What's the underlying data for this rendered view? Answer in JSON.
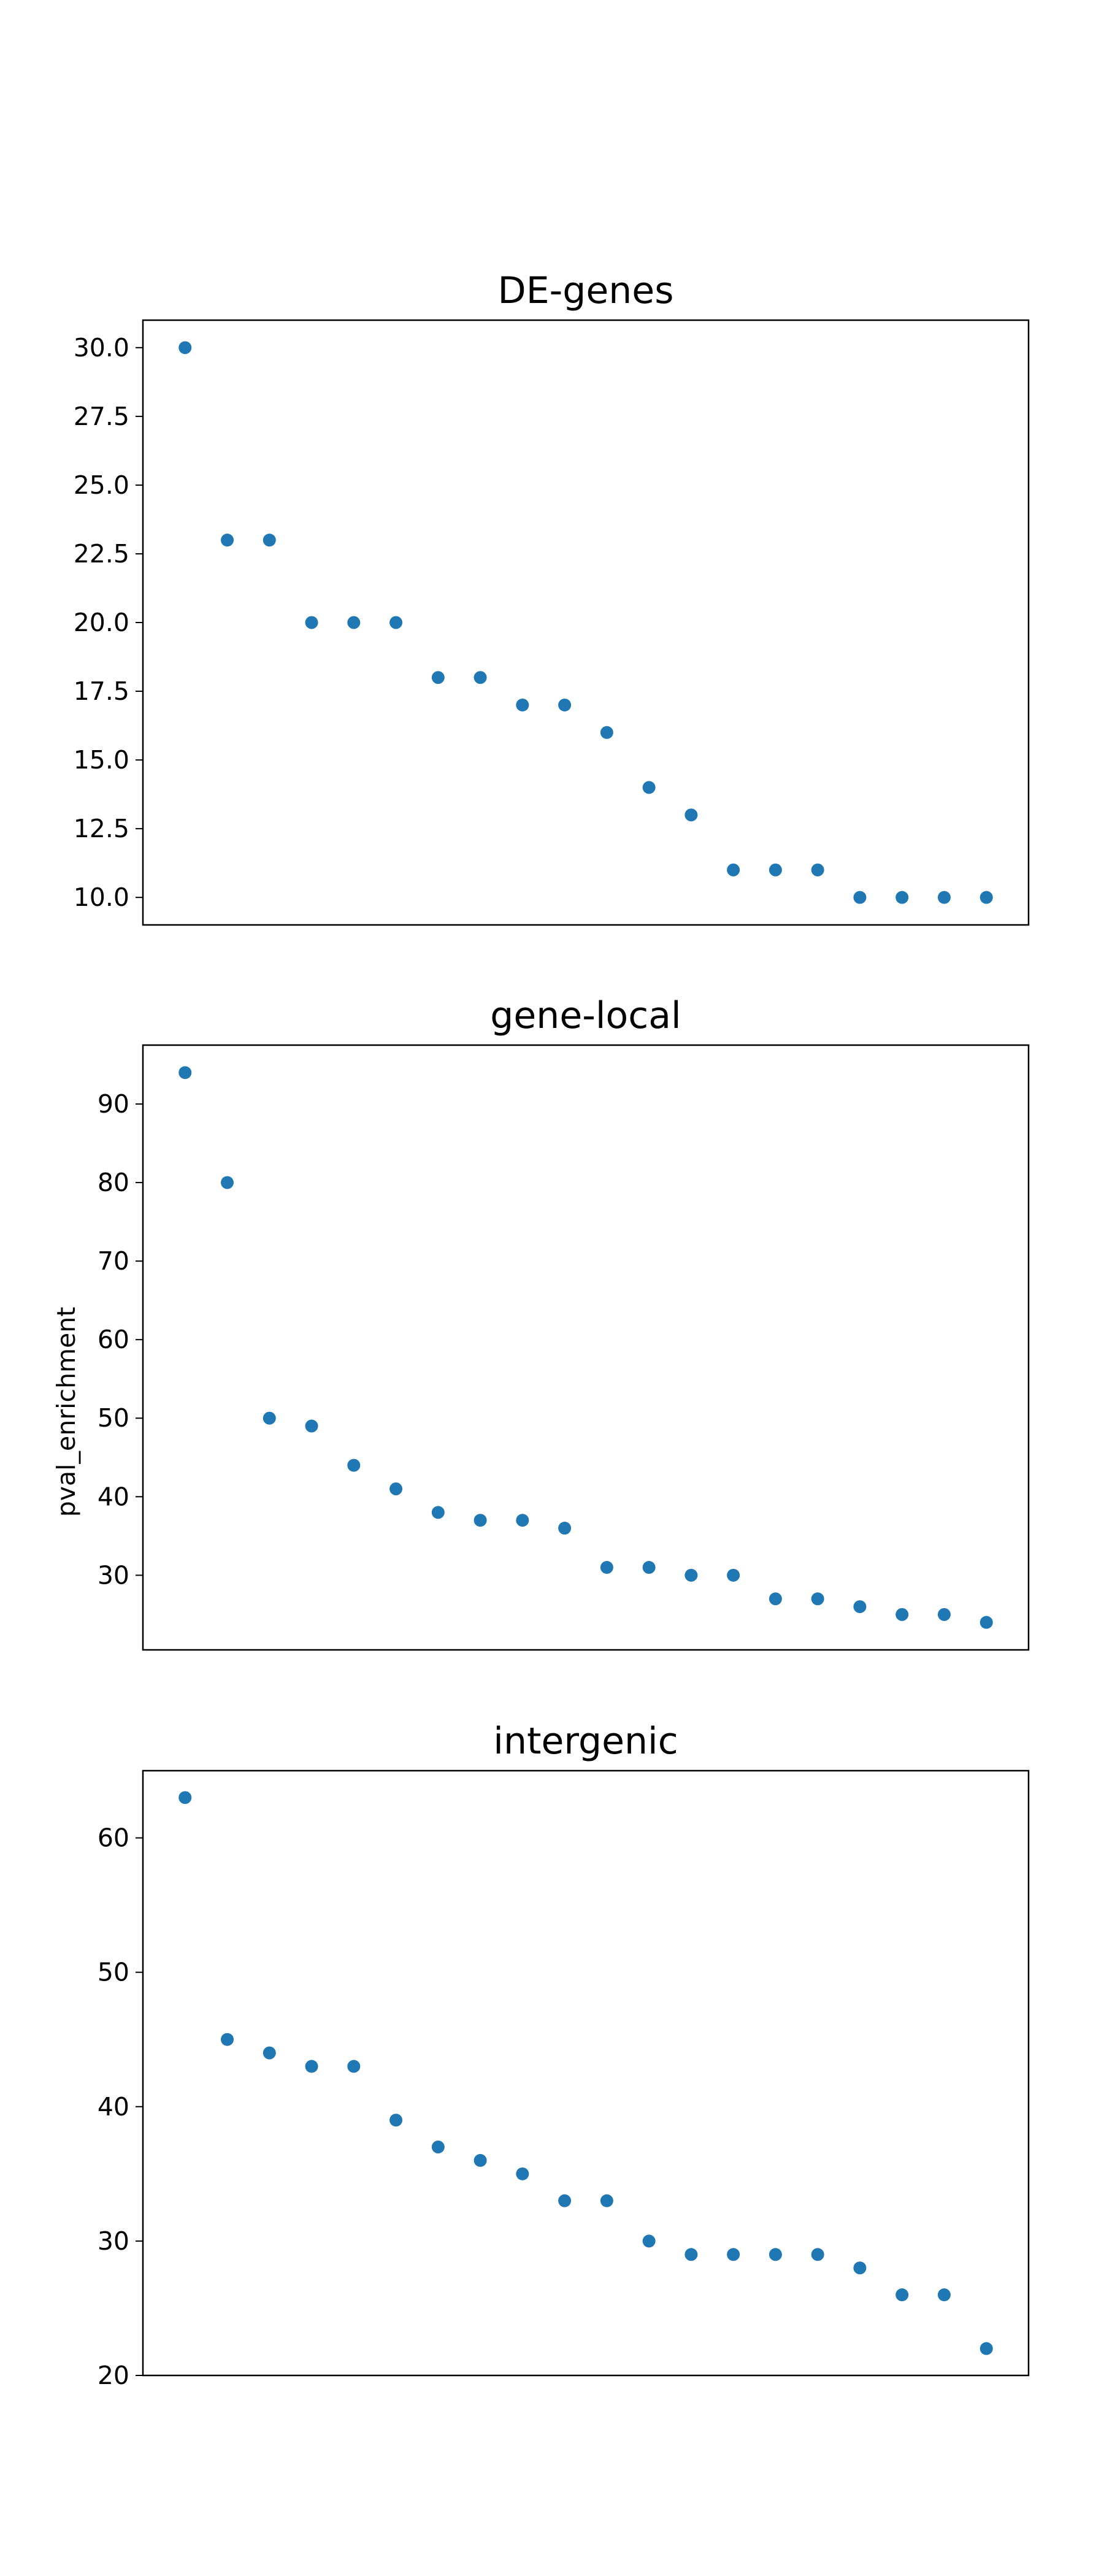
{
  "figure": {
    "ylabel": "pval_enrichment"
  },
  "style": {
    "marker_color": "#1f77b4",
    "axes_color": "#000000",
    "background": "#ffffff"
  },
  "chart_data": [
    {
      "type": "scatter",
      "title": "DE-genes",
      "xlabel": "",
      "ylabel": "",
      "x": [
        1,
        2,
        3,
        4,
        5,
        6,
        7,
        8,
        9,
        10,
        11,
        12,
        13,
        14,
        15,
        16,
        17,
        18,
        19,
        20
      ],
      "values": [
        30,
        23,
        23,
        20,
        20,
        20,
        18,
        18,
        17,
        17,
        16,
        14,
        13,
        11,
        11,
        11,
        10,
        10,
        10,
        10
      ],
      "xlim": [
        0,
        21
      ],
      "ylim": [
        9,
        31
      ],
      "yticks": [
        10.0,
        12.5,
        15.0,
        17.5,
        20.0,
        22.5,
        25.0,
        27.5,
        30.0
      ],
      "ytick_labels": [
        "10.0",
        "12.5",
        "15.0",
        "17.5",
        "20.0",
        "22.5",
        "25.0",
        "27.5",
        "30.0"
      ],
      "xticks_visible": false,
      "grid": false
    },
    {
      "type": "scatter",
      "title": "gene-local",
      "xlabel": "",
      "ylabel": "pval_enrichment",
      "x": [
        1,
        2,
        3,
        4,
        5,
        6,
        7,
        8,
        9,
        10,
        11,
        12,
        13,
        14,
        15,
        16,
        17,
        18,
        19,
        20
      ],
      "values": [
        94,
        80,
        50,
        49,
        44,
        41,
        38,
        37,
        37,
        36,
        31,
        31,
        30,
        30,
        27,
        27,
        26,
        25,
        25,
        24
      ],
      "xlim": [
        0,
        21
      ],
      "ylim": [
        20.5,
        97.5
      ],
      "yticks": [
        30,
        40,
        50,
        60,
        70,
        80,
        90
      ],
      "ytick_labels": [
        "30",
        "40",
        "50",
        "60",
        "70",
        "80",
        "90"
      ],
      "xticks_visible": false,
      "grid": false
    },
    {
      "type": "scatter",
      "title": "intergenic",
      "xlabel": "",
      "ylabel": "",
      "x": [
        1,
        2,
        3,
        4,
        5,
        6,
        7,
        8,
        9,
        10,
        11,
        12,
        13,
        14,
        15,
        16,
        17,
        18,
        19,
        20
      ],
      "values": [
        63,
        45,
        44,
        43,
        43,
        39,
        37,
        36,
        35,
        33,
        33,
        30,
        29,
        29,
        29,
        29,
        28,
        26,
        26,
        22
      ],
      "xlim": [
        0,
        21
      ],
      "ylim": [
        20,
        65
      ],
      "yticks": [
        20,
        30,
        40,
        50,
        60
      ],
      "ytick_labels": [
        "20",
        "30",
        "40",
        "50",
        "60"
      ],
      "xticks_visible": false,
      "grid": false
    }
  ]
}
